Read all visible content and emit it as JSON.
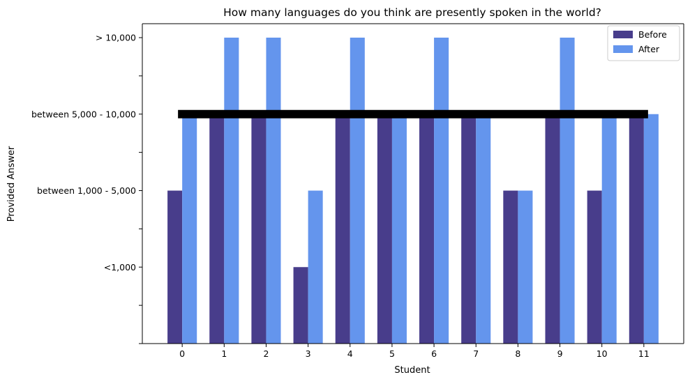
{
  "chart_data": {
    "type": "bar",
    "title": "How many languages do you think are presently spoken in the world?",
    "xlabel": "Student",
    "ylabel": "Provided Answer",
    "categories": [
      "0",
      "1",
      "2",
      "3",
      "4",
      "5",
      "6",
      "7",
      "8",
      "9",
      "10",
      "11"
    ],
    "y_tick_labels": [
      {
        "value": 1,
        "label": "<1,000"
      },
      {
        "value": 2,
        "label": "between 1,000 - 5,000"
      },
      {
        "value": 3,
        "label": "between 5,000 - 10,000"
      },
      {
        "value": 4,
        "label": "> 10,000"
      }
    ],
    "ylim": [
      -1,
      4.5
    ],
    "series": [
      {
        "name": "Before",
        "color": "#483D8B",
        "values": [
          2,
          3,
          3,
          1,
          3,
          3,
          3,
          3,
          2,
          3,
          2,
          3
        ]
      },
      {
        "name": "After",
        "color": "#6495ED",
        "values": [
          3,
          4,
          4,
          2,
          4,
          3,
          4,
          3,
          2,
          4,
          3,
          3
        ]
      }
    ],
    "reference_line": {
      "y": 3,
      "x_from": -0.1,
      "x_to": 11.1,
      "color": "#000000"
    },
    "legend_position": "top-right",
    "grid": false
  }
}
